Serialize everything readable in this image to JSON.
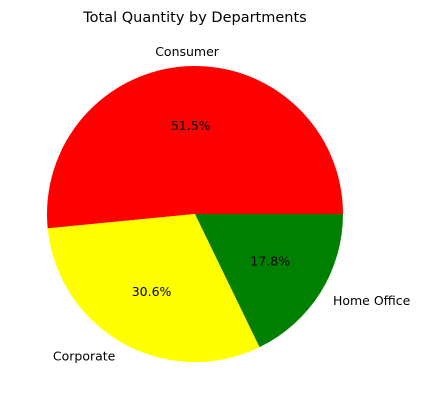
{
  "chart_data": {
    "type": "pie",
    "title": "Total Quantity by Departments",
    "slices": [
      {
        "label": "Consumer",
        "value": 51.5,
        "pct_label": "51.5%",
        "color": "#ff0000"
      },
      {
        "label": "Corporate",
        "value": 30.6,
        "pct_label": "30.6%",
        "color": "#ffff00"
      },
      {
        "label": "Home Office",
        "value": 17.8,
        "pct_label": "17.8%",
        "color": "#008000"
      }
    ],
    "start_angle_deg": 0,
    "direction": "counterclockwise"
  }
}
